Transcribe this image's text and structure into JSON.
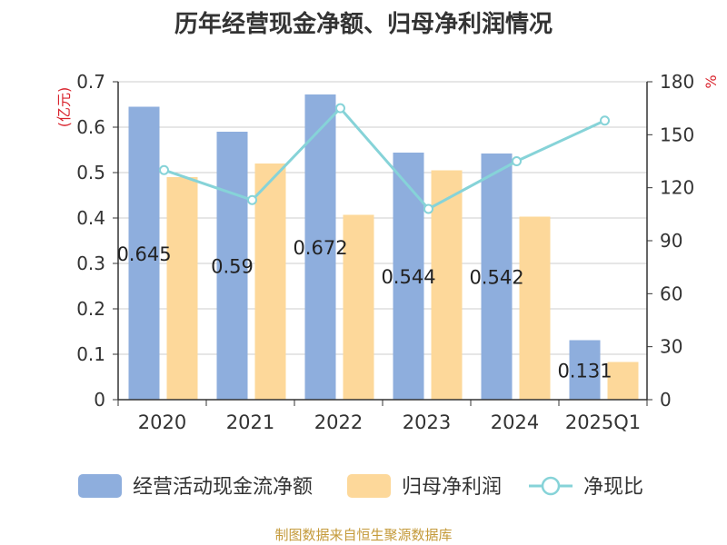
{
  "title": "历年经营现金净额、归母净利润情况",
  "footer": "制图数据来自恒生聚源数据库",
  "colors": {
    "operating_cash": "#8eaedd",
    "net_profit": "#fdd89a",
    "ratio_line": "#86d3d8",
    "unit_red": "#d9232d",
    "axis": "#333333",
    "grid": "#cccccc",
    "footer": "#c49a3a"
  },
  "chart_data": {
    "type": "bar",
    "categories": [
      "2020",
      "2021",
      "2022",
      "2023",
      "2024",
      "2025Q1"
    ],
    "left_axis": {
      "unit": "(亿元)",
      "ylim": [
        0,
        0.7
      ],
      "ticks": [
        "0",
        "0.1",
        "0.2",
        "0.3",
        "0.4",
        "0.5",
        "0.6",
        "0.7"
      ]
    },
    "right_axis": {
      "unit": "%",
      "ylim": [
        0,
        180
      ],
      "ticks": [
        "0",
        "30",
        "60",
        "90",
        "120",
        "150",
        "180"
      ]
    },
    "series": [
      {
        "name": "经营活动现金流净额",
        "type": "bar",
        "axis": "left",
        "values": [
          0.645,
          0.59,
          0.672,
          0.544,
          0.542,
          0.131
        ],
        "data_labels": [
          "0.645",
          "0.59",
          "0.672",
          "0.544",
          "0.542",
          "0.131"
        ]
      },
      {
        "name": "归母净利润",
        "type": "bar",
        "axis": "left",
        "values": [
          0.49,
          0.52,
          0.407,
          0.505,
          0.403,
          0.083
        ]
      },
      {
        "name": "净现比",
        "type": "line",
        "axis": "right",
        "values": [
          130,
          113,
          165,
          108,
          135,
          158
        ]
      }
    ],
    "grid": true,
    "legend_position": "bottom"
  }
}
